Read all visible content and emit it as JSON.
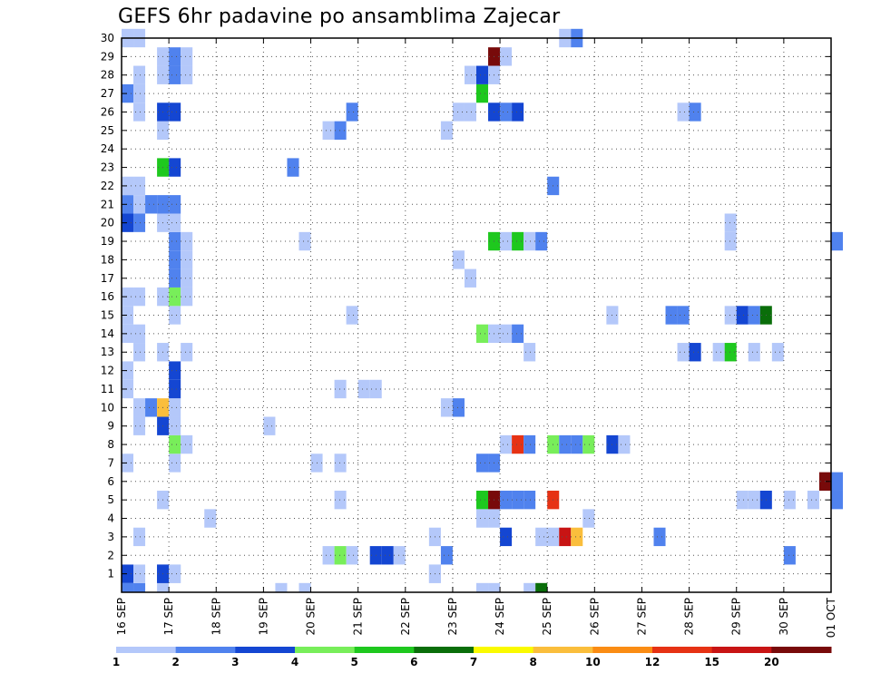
{
  "chart_data": {
    "type": "heatmap",
    "title": "GEFS 6hr padavine po ansamblima Zajecar",
    "xlabel": "",
    "ylabel": "",
    "x_tick_labels": [
      "16 SEP",
      "17 SEP",
      "18 SEP",
      "19 SEP",
      "20 SEP",
      "21 SEP",
      "22 SEP",
      "23 SEP",
      "24 SEP",
      "25 SEP",
      "26 SEP",
      "27 SEP",
      "28 SEP",
      "29 SEP",
      "30 SEP",
      "01 OCT"
    ],
    "y_tick_labels": [
      "1",
      "2",
      "3",
      "4",
      "5",
      "6",
      "7",
      "8",
      "9",
      "10",
      "11",
      "12",
      "13",
      "14",
      "15",
      "16",
      "17",
      "18",
      "19",
      "20",
      "21",
      "22",
      "23",
      "24",
      "25",
      "26",
      "27",
      "28",
      "29",
      "30"
    ],
    "x_unit": "6-hour steps from 16 SEP 00 UTC",
    "xlim": [
      0,
      60
    ],
    "ylim": [
      0,
      30
    ],
    "grid": true,
    "colorbar": {
      "bounds": [
        1,
        2,
        3,
        4,
        5,
        6,
        7,
        8,
        10,
        12,
        15,
        20
      ],
      "labels": [
        "1",
        "2",
        "3",
        "4",
        "5",
        "6",
        "7",
        "8",
        "10",
        "12",
        "15",
        "20"
      ],
      "colors": [
        "#b4c8fa",
        "#5082ee",
        "#1446d2",
        "#78ee5a",
        "#1ec81e",
        "#0a6e0a",
        "#fafa00",
        "#fabe3c",
        "#fa8c14",
        "#e63214",
        "#c81414",
        "#780a0a"
      ]
    },
    "cells": [
      [
        0,
        0,
        2
      ],
      [
        0,
        1,
        3
      ],
      [
        1,
        0,
        2
      ],
      [
        1,
        1,
        1
      ],
      [
        3,
        0,
        1
      ],
      [
        3,
        1,
        3
      ],
      [
        4,
        1,
        1
      ],
      [
        13,
        0,
        1
      ],
      [
        15,
        0,
        1
      ],
      [
        26,
        1,
        1
      ],
      [
        30,
        0,
        1
      ],
      [
        31,
        0,
        1
      ],
      [
        34,
        0,
        1
      ],
      [
        35,
        0,
        6
      ],
      [
        3,
        1,
        3
      ],
      [
        4,
        1,
        1
      ],
      [
        26,
        1,
        1
      ],
      [
        17,
        2,
        1
      ],
      [
        18,
        2,
        4
      ],
      [
        19,
        2,
        1
      ],
      [
        21,
        2,
        3
      ],
      [
        22,
        2,
        3
      ],
      [
        23,
        2,
        1
      ],
      [
        27,
        2,
        2
      ],
      [
        56,
        2,
        2
      ],
      [
        1,
        3,
        1
      ],
      [
        26,
        3,
        1
      ],
      [
        32,
        3,
        3
      ],
      [
        35,
        3,
        1
      ],
      [
        36,
        3,
        1
      ],
      [
        37,
        3,
        11
      ],
      [
        38,
        3,
        8
      ],
      [
        45,
        3,
        2
      ],
      [
        7,
        4,
        1
      ],
      [
        30,
        4,
        1
      ],
      [
        31,
        4,
        1
      ],
      [
        39,
        4,
        1
      ],
      [
        30,
        5,
        5
      ],
      [
        31,
        5,
        12
      ],
      [
        32,
        5,
        2
      ],
      [
        33,
        5,
        2
      ],
      [
        34,
        5,
        2
      ],
      [
        36,
        5,
        10
      ],
      [
        52,
        5,
        1
      ],
      [
        53,
        5,
        1
      ],
      [
        54,
        5,
        3
      ],
      [
        56,
        5,
        1
      ],
      [
        58,
        5,
        1
      ],
      [
        60,
        5,
        2
      ],
      [
        3,
        5,
        1
      ],
      [
        18,
        5,
        1
      ],
      [
        59,
        6,
        12
      ],
      [
        60,
        6,
        2
      ],
      [
        0,
        7,
        1
      ],
      [
        4,
        7,
        1
      ],
      [
        16,
        7,
        1
      ],
      [
        18,
        7,
        1
      ],
      [
        30,
        7,
        2
      ],
      [
        31,
        7,
        2
      ],
      [
        4,
        8,
        4
      ],
      [
        5,
        8,
        1
      ],
      [
        32,
        8,
        1
      ],
      [
        33,
        8,
        10
      ],
      [
        34,
        8,
        2
      ],
      [
        36,
        8,
        4
      ],
      [
        37,
        8,
        2
      ],
      [
        38,
        8,
        2
      ],
      [
        39,
        8,
        4
      ],
      [
        41,
        8,
        3
      ],
      [
        42,
        8,
        1
      ],
      [
        1,
        9,
        1
      ],
      [
        3,
        9,
        3
      ],
      [
        4,
        9,
        1
      ],
      [
        12,
        9,
        1
      ],
      [
        1,
        10,
        1
      ],
      [
        2,
        10,
        2
      ],
      [
        3,
        10,
        8
      ],
      [
        4,
        10,
        1
      ],
      [
        27,
        10,
        1
      ],
      [
        28,
        10,
        2
      ],
      [
        0,
        11,
        1
      ],
      [
        4,
        11,
        3
      ],
      [
        18,
        11,
        1
      ],
      [
        20,
        11,
        1
      ],
      [
        21,
        11,
        1
      ],
      [
        0,
        12,
        1
      ],
      [
        4,
        12,
        3
      ],
      [
        1,
        13,
        1
      ],
      [
        3,
        13,
        1
      ],
      [
        5,
        13,
        1
      ],
      [
        34,
        13,
        1
      ],
      [
        47,
        13,
        1
      ],
      [
        48,
        13,
        3
      ],
      [
        50,
        13,
        1
      ],
      [
        51,
        13,
        5
      ],
      [
        53,
        13,
        1
      ],
      [
        55,
        13,
        1
      ],
      [
        0,
        14,
        1
      ],
      [
        1,
        14,
        1
      ],
      [
        30,
        14,
        4
      ],
      [
        31,
        14,
        1
      ],
      [
        32,
        14,
        1
      ],
      [
        33,
        14,
        2
      ],
      [
        0,
        15,
        1
      ],
      [
        4,
        15,
        1
      ],
      [
        19,
        15,
        1
      ],
      [
        41,
        15,
        1
      ],
      [
        46,
        15,
        2
      ],
      [
        47,
        15,
        2
      ],
      [
        51,
        15,
        1
      ],
      [
        52,
        15,
        3
      ],
      [
        53,
        15,
        2
      ],
      [
        54,
        15,
        6
      ],
      [
        0,
        16,
        1
      ],
      [
        1,
        16,
        1
      ],
      [
        3,
        16,
        1
      ],
      [
        4,
        16,
        4
      ],
      [
        5,
        16,
        1
      ],
      [
        4,
        17,
        2
      ],
      [
        5,
        17,
        1
      ],
      [
        29,
        17,
        1
      ],
      [
        4,
        18,
        2
      ],
      [
        5,
        18,
        1
      ],
      [
        28,
        18,
        1
      ],
      [
        4,
        19,
        2
      ],
      [
        5,
        19,
        1
      ],
      [
        15,
        19,
        1
      ],
      [
        31,
        19,
        5
      ],
      [
        32,
        19,
        1
      ],
      [
        33,
        19,
        5
      ],
      [
        34,
        19,
        1
      ],
      [
        35,
        19,
        2
      ],
      [
        51,
        19,
        1
      ],
      [
        60,
        19,
        2
      ],
      [
        0,
        20,
        3
      ],
      [
        1,
        20,
        2
      ],
      [
        3,
        20,
        1
      ],
      [
        4,
        20,
        1
      ],
      [
        51,
        20,
        1
      ],
      [
        0,
        21,
        2
      ],
      [
        1,
        21,
        1
      ],
      [
        2,
        21,
        2
      ],
      [
        3,
        21,
        2
      ],
      [
        4,
        21,
        2
      ],
      [
        0,
        22,
        1
      ],
      [
        1,
        22,
        1
      ],
      [
        36,
        22,
        2
      ],
      [
        3,
        23,
        5
      ],
      [
        4,
        23,
        3
      ],
      [
        14,
        23,
        2
      ],
      [
        3,
        25,
        1
      ],
      [
        17,
        25,
        1
      ],
      [
        18,
        25,
        2
      ],
      [
        27,
        25,
        1
      ],
      [
        1,
        26,
        1
      ],
      [
        3,
        26,
        3
      ],
      [
        4,
        26,
        3
      ],
      [
        19,
        26,
        2
      ],
      [
        28,
        26,
        1
      ],
      [
        29,
        26,
        1
      ],
      [
        31,
        26,
        3
      ],
      [
        32,
        26,
        2
      ],
      [
        33,
        26,
        3
      ],
      [
        47,
        26,
        1
      ],
      [
        48,
        26,
        2
      ],
      [
        0,
        27,
        2
      ],
      [
        1,
        27,
        1
      ],
      [
        30,
        27,
        5
      ],
      [
        1,
        28,
        1
      ],
      [
        3,
        28,
        1
      ],
      [
        4,
        28,
        2
      ],
      [
        5,
        28,
        1
      ],
      [
        29,
        28,
        1
      ],
      [
        30,
        28,
        3
      ],
      [
        31,
        28,
        1
      ],
      [
        3,
        29,
        1
      ],
      [
        4,
        29,
        2
      ],
      [
        5,
        29,
        1
      ],
      [
        31,
        29,
        12
      ],
      [
        32,
        29,
        1
      ],
      [
        0,
        30,
        1
      ],
      [
        1,
        30,
        1
      ],
      [
        37,
        30,
        1
      ],
      [
        38,
        30,
        2
      ]
    ]
  }
}
